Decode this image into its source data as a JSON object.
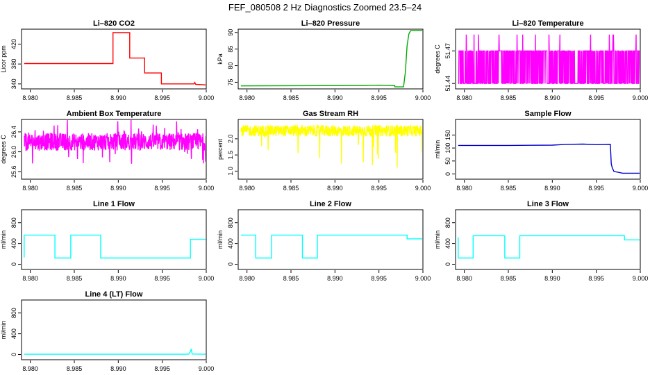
{
  "page": {
    "title": "FEF_080508  2 Hz Diagnostics Zoomed 23.5–24"
  },
  "chart_data": [
    {
      "type": "line",
      "title": "Li–820 CO2",
      "xlabel": "",
      "ylabel": "Licor ppm",
      "xlim": [
        8.979,
        9.0
      ],
      "ylim": [
        330,
        450
      ],
      "color": "#ff0000",
      "x_ticks": [
        "8.980",
        "8.985",
        "8.990",
        "8.995",
        "9.000"
      ],
      "y_ticks": [
        {
          "value": 340,
          "label": "340"
        },
        {
          "value": 380,
          "label": "380"
        },
        {
          "value": 420,
          "label": "420"
        }
      ],
      "series": [
        {
          "points": [
            [
              8.9793,
              381
            ],
            [
              8.9894,
              381
            ],
            [
              8.9894,
              443
            ],
            [
              8.9913,
              443
            ],
            [
              8.9913,
              392
            ],
            [
              8.993,
              392
            ],
            [
              8.993,
              362
            ],
            [
              8.9949,
              362
            ],
            [
              8.9949,
              340
            ],
            [
              8.9986,
              340
            ],
            [
              8.9987,
              343
            ],
            [
              8.9988,
              339
            ],
            [
              9.0,
              338
            ]
          ]
        }
      ]
    },
    {
      "type": "line",
      "title": "Li–820 Pressure",
      "xlabel": "",
      "ylabel": "kPa",
      "xlim": [
        8.979,
        9.0
      ],
      "ylim": [
        73,
        91
      ],
      "color": "#00aa00",
      "x_ticks": [
        "8.980",
        "8.985",
        "8.990",
        "8.995",
        "9.000"
      ],
      "y_ticks": [
        {
          "value": 75,
          "label": "75"
        },
        {
          "value": 80,
          "label": "80"
        },
        {
          "value": 85,
          "label": "85"
        },
        {
          "value": 90,
          "label": "90"
        }
      ],
      "series": [
        {
          "points": [
            [
              8.9793,
              73.9
            ],
            [
              8.993,
              74.0
            ],
            [
              8.995,
              74.1
            ],
            [
              8.9968,
              74.0
            ],
            [
              8.9968,
              73.6
            ],
            [
              8.9978,
              73.6
            ],
            [
              8.998,
              78
            ],
            [
              8.9982,
              86
            ],
            [
              8.9984,
              89.5
            ],
            [
              8.9986,
              90.6
            ],
            [
              9.0,
              90.6
            ]
          ]
        }
      ]
    },
    {
      "type": "line",
      "title": "Li–820 Temperature",
      "xlabel": "",
      "ylabel": "degrees C",
      "xlim": [
        8.979,
        9.0
      ],
      "ylim": [
        51.435,
        51.49
      ],
      "color": "#ff00ff",
      "x_ticks": [
        "8.980",
        "8.985",
        "8.990",
        "8.995",
        "9.000"
      ],
      "y_ticks": [
        {
          "value": 51.44,
          "label": "51.44"
        },
        {
          "value": 51.47,
          "label": "51.47"
        }
      ],
      "series": [
        {
          "points": []
        }
      ]
    },
    {
      "type": "line",
      "title": "Ambient Box Temperature",
      "xlabel": "",
      "ylabel": "degrees C",
      "xlim": [
        8.979,
        9.0
      ],
      "ylim": [
        25.45,
        26.65
      ],
      "color": "#ff00ff",
      "x_ticks": [
        "8.980",
        "8.985",
        "8.990",
        "8.995",
        "9.000"
      ],
      "y_ticks": [
        {
          "value": 25.6,
          "label": "25.6"
        },
        {
          "value": 26.0,
          "label": "26.0"
        },
        {
          "value": 26.4,
          "label": "26.4"
        }
      ],
      "series": [
        {
          "points": []
        }
      ]
    },
    {
      "type": "line",
      "title": "Gas Stream RH",
      "xlabel": "",
      "ylabel": "percent",
      "xlim": [
        8.979,
        9.0
      ],
      "ylim": [
        0.75,
        2.6
      ],
      "color": "#ffff00",
      "x_ticks": [
        "8.980",
        "8.985",
        "8.990",
        "8.995",
        "9.000"
      ],
      "y_ticks": [
        {
          "value": 1.0,
          "label": "1.0"
        },
        {
          "value": 1.5,
          "label": "1.5"
        },
        {
          "value": 2.0,
          "label": "2.0"
        }
      ],
      "series": [
        {
          "points": []
        }
      ]
    },
    {
      "type": "line",
      "title": "Sample Flow",
      "xlabel": "",
      "ylabel": "ml/min",
      "xlim": [
        8.979,
        9.0
      ],
      "ylim": [
        -20,
        210
      ],
      "color": "#0000cc",
      "x_ticks": [
        "8.980",
        "8.985",
        "8.990",
        "8.995",
        "9.000"
      ],
      "y_ticks": [
        {
          "value": 0,
          "label": "0"
        },
        {
          "value": 50,
          "label": "50"
        },
        {
          "value": 100,
          "label": "100"
        },
        {
          "value": 150,
          "label": "150"
        }
      ],
      "series": [
        {
          "points": [
            [
              8.9793,
              110
            ],
            [
              8.985,
              110
            ],
            [
              8.99,
              111
            ],
            [
              8.9915,
              114
            ],
            [
              8.9935,
              115
            ],
            [
              8.995,
              113
            ],
            [
              8.9966,
              114
            ],
            [
              8.9967,
              40
            ],
            [
              8.9968,
              25
            ],
            [
              8.997,
              10
            ],
            [
              8.998,
              3
            ],
            [
              9.0,
              3
            ]
          ]
        }
      ]
    },
    {
      "type": "line",
      "title": "Line 1 Flow",
      "xlabel": "",
      "ylabel": "ml/min",
      "xlim": [
        8.979,
        9.0
      ],
      "ylim": [
        -100,
        1050
      ],
      "color": "#00ffff",
      "x_ticks": [
        "8.980",
        "8.985",
        "8.990",
        "8.995",
        "9.000"
      ],
      "y_ticks": [
        {
          "value": 0,
          "label": "0"
        },
        {
          "value": 400,
          "label": "400"
        },
        {
          "value": 800,
          "label": "800"
        }
      ],
      "series": [
        {
          "points": [
            [
              8.9793,
              130
            ],
            [
              8.9793,
              560
            ],
            [
              8.9828,
              560
            ],
            [
              8.9828,
              120
            ],
            [
              8.9846,
              120
            ],
            [
              8.9846,
              560
            ],
            [
              8.988,
              560
            ],
            [
              8.988,
              120
            ],
            [
              8.9982,
              120
            ],
            [
              8.9982,
              480
            ],
            [
              9.0,
              480
            ]
          ]
        }
      ]
    },
    {
      "type": "line",
      "title": "Line 2 Flow",
      "xlabel": "",
      "ylabel": "ml/min",
      "xlim": [
        8.979,
        9.0
      ],
      "ylim": [
        -100,
        1050
      ],
      "color": "#00ffff",
      "x_ticks": [
        "8.980",
        "8.985",
        "8.990",
        "8.995",
        "9.000"
      ],
      "y_ticks": [
        {
          "value": 0,
          "label": "0"
        },
        {
          "value": 400,
          "label": "400"
        },
        {
          "value": 800,
          "label": "800"
        }
      ],
      "series": [
        {
          "points": [
            [
              8.9793,
              560
            ],
            [
              8.981,
              560
            ],
            [
              8.981,
              120
            ],
            [
              8.9828,
              120
            ],
            [
              8.9828,
              560
            ],
            [
              8.9863,
              560
            ],
            [
              8.9863,
              120
            ],
            [
              8.988,
              120
            ],
            [
              8.988,
              560
            ],
            [
              8.9982,
              560
            ],
            [
              8.9982,
              490
            ],
            [
              9.0,
              490
            ]
          ]
        }
      ]
    },
    {
      "type": "line",
      "title": "Line 3 Flow",
      "xlabel": "",
      "ylabel": "ml/min",
      "xlim": [
        8.979,
        9.0
      ],
      "ylim": [
        -100,
        1050
      ],
      "color": "#00ffff",
      "x_ticks": [
        "8.980",
        "8.985",
        "8.990",
        "8.995",
        "9.000"
      ],
      "y_ticks": [
        {
          "value": 0,
          "label": "0"
        },
        {
          "value": 400,
          "label": "400"
        },
        {
          "value": 800,
          "label": "800"
        }
      ],
      "series": [
        {
          "points": [
            [
              8.9793,
              520
            ],
            [
              8.9793,
              120
            ],
            [
              8.981,
              120
            ],
            [
              8.981,
              550
            ],
            [
              8.9846,
              550
            ],
            [
              8.9846,
              120
            ],
            [
              8.9863,
              120
            ],
            [
              8.9863,
              550
            ],
            [
              8.9982,
              550
            ],
            [
              8.9982,
              470
            ],
            [
              9.0,
              470
            ]
          ]
        }
      ]
    },
    {
      "type": "line",
      "title": "Line 4 (LT) Flow",
      "xlabel": "",
      "ylabel": "ml/min",
      "xlim": [
        8.979,
        9.0
      ],
      "ylim": [
        -100,
        1050
      ],
      "color": "#00ffff",
      "x_ticks": [
        "8.980",
        "8.985",
        "8.990",
        "8.995",
        "9.000"
      ],
      "y_ticks": [
        {
          "value": 0,
          "label": "0"
        },
        {
          "value": 400,
          "label": "400"
        },
        {
          "value": 800,
          "label": "800"
        }
      ],
      "series": [
        {
          "points": [
            [
              8.9793,
              5
            ],
            [
              8.998,
              5
            ],
            [
              8.9982,
              60
            ],
            [
              8.9983,
              110
            ],
            [
              8.9984,
              10
            ],
            [
              9.0,
              5
            ]
          ]
        }
      ]
    }
  ]
}
